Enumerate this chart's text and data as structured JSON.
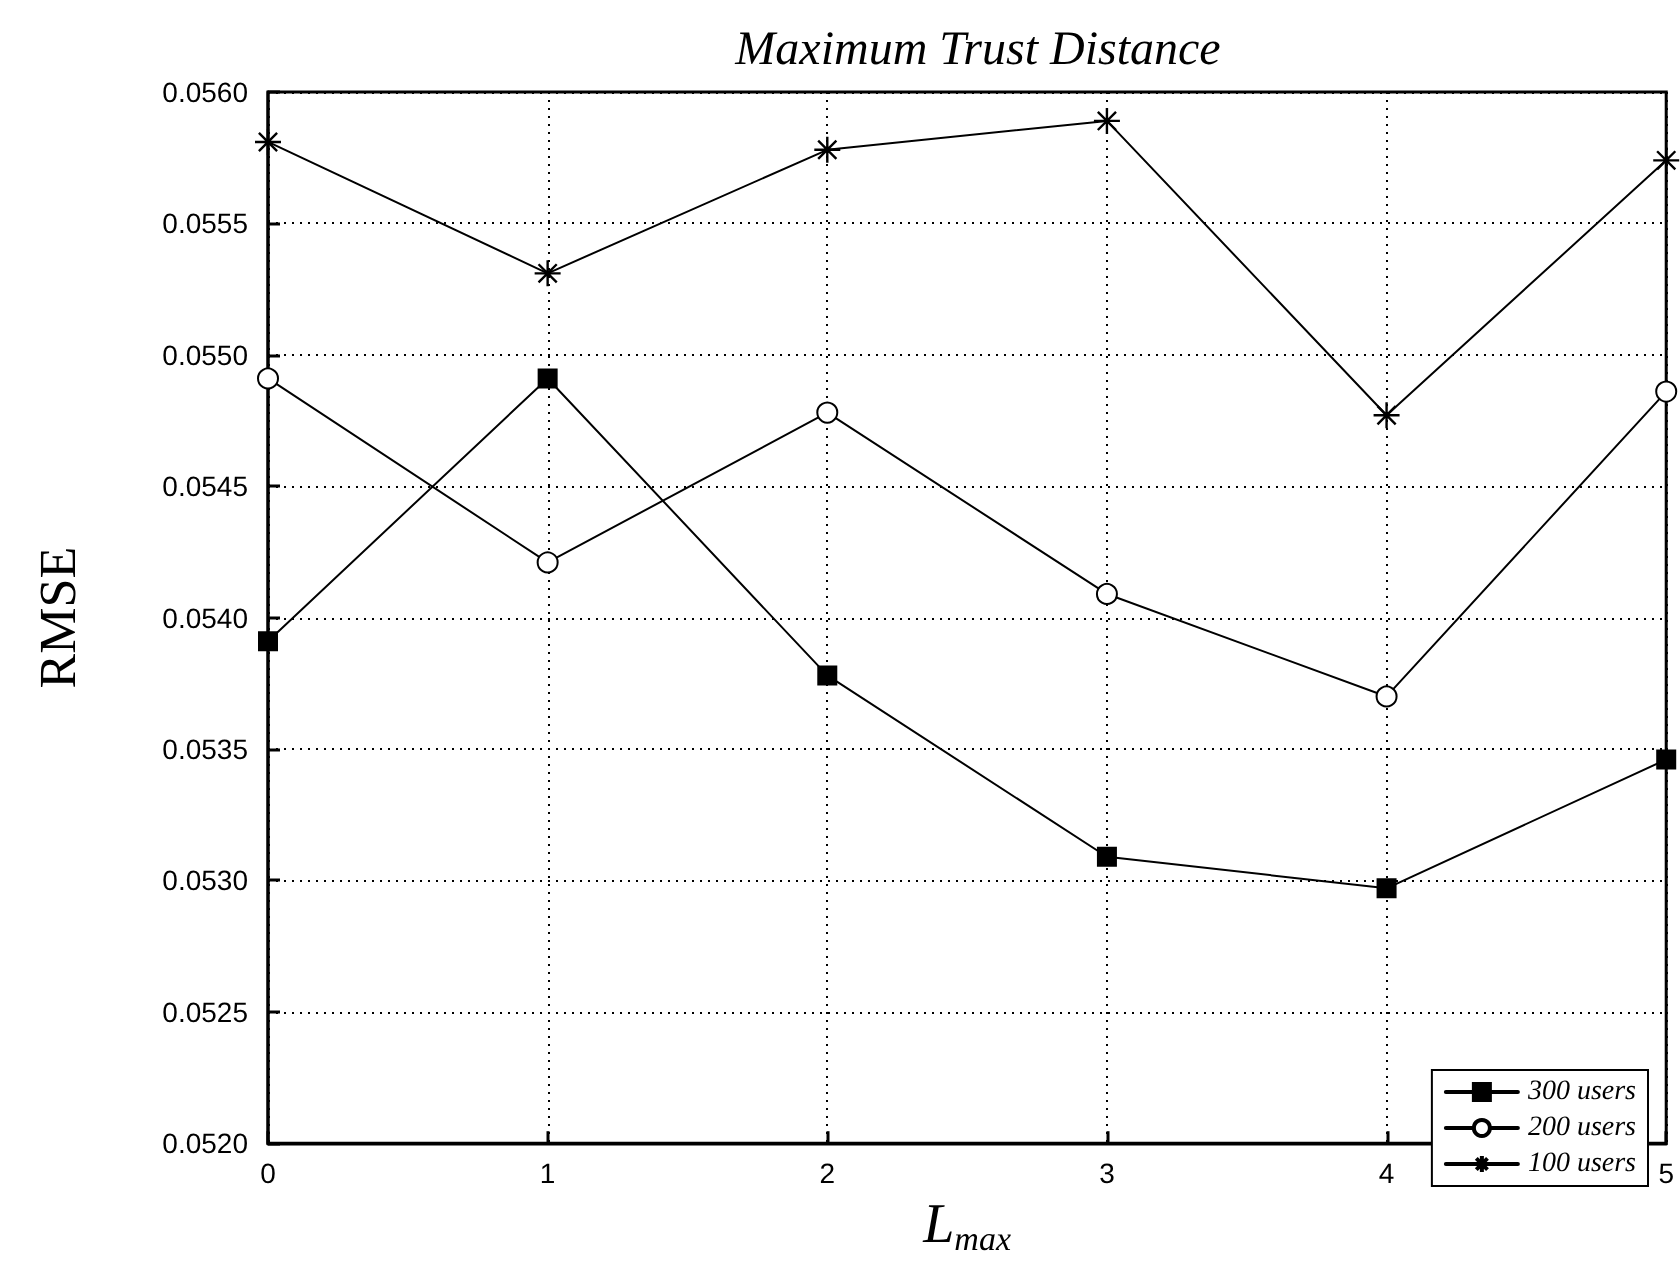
{
  "chart_data": {
    "type": "line",
    "title": "Maximum Trust Distance",
    "xlabel": "L$_{max}$",
    "ylabel": "RMSE",
    "x": [
      0,
      1,
      2,
      3,
      4,
      5
    ],
    "series": [
      {
        "name": "300 users",
        "color": "#000000",
        "marker": "square",
        "values": [
          0.05391,
          0.05491,
          0.05378,
          0.05309,
          0.05297,
          0.05346
        ]
      },
      {
        "name": "200 users",
        "color": "#000000",
        "marker": "circle",
        "values": [
          0.05491,
          0.05421,
          0.05478,
          0.05409,
          0.0537,
          0.05486
        ]
      },
      {
        "name": "100 users",
        "color": "#000000",
        "marker": "cross",
        "values": [
          0.05581,
          0.05531,
          0.05578,
          0.05589,
          0.05477,
          0.05574
        ]
      }
    ],
    "xlim": [
      0,
      5
    ],
    "xticks": [
      0,
      1,
      2,
      3,
      4,
      5
    ],
    "ylim": [
      0.052,
      0.056
    ],
    "yticks": [
      {
        "value": 0.052,
        "label": "0.0520"
      },
      0.0525,
      {
        "value": 0.053,
        "label": "0.0530"
      },
      0.0535,
      {
        "value": 0.054,
        "label": "0.0540"
      },
      0.0545,
      {
        "value": 0.055,
        "label": "0.0550"
      },
      0.0555,
      {
        "value": 0.056,
        "label": "0.0560"
      }
    ],
    "grid": true,
    "legend": "bottom right",
    "line_style": "solid"
  }
}
